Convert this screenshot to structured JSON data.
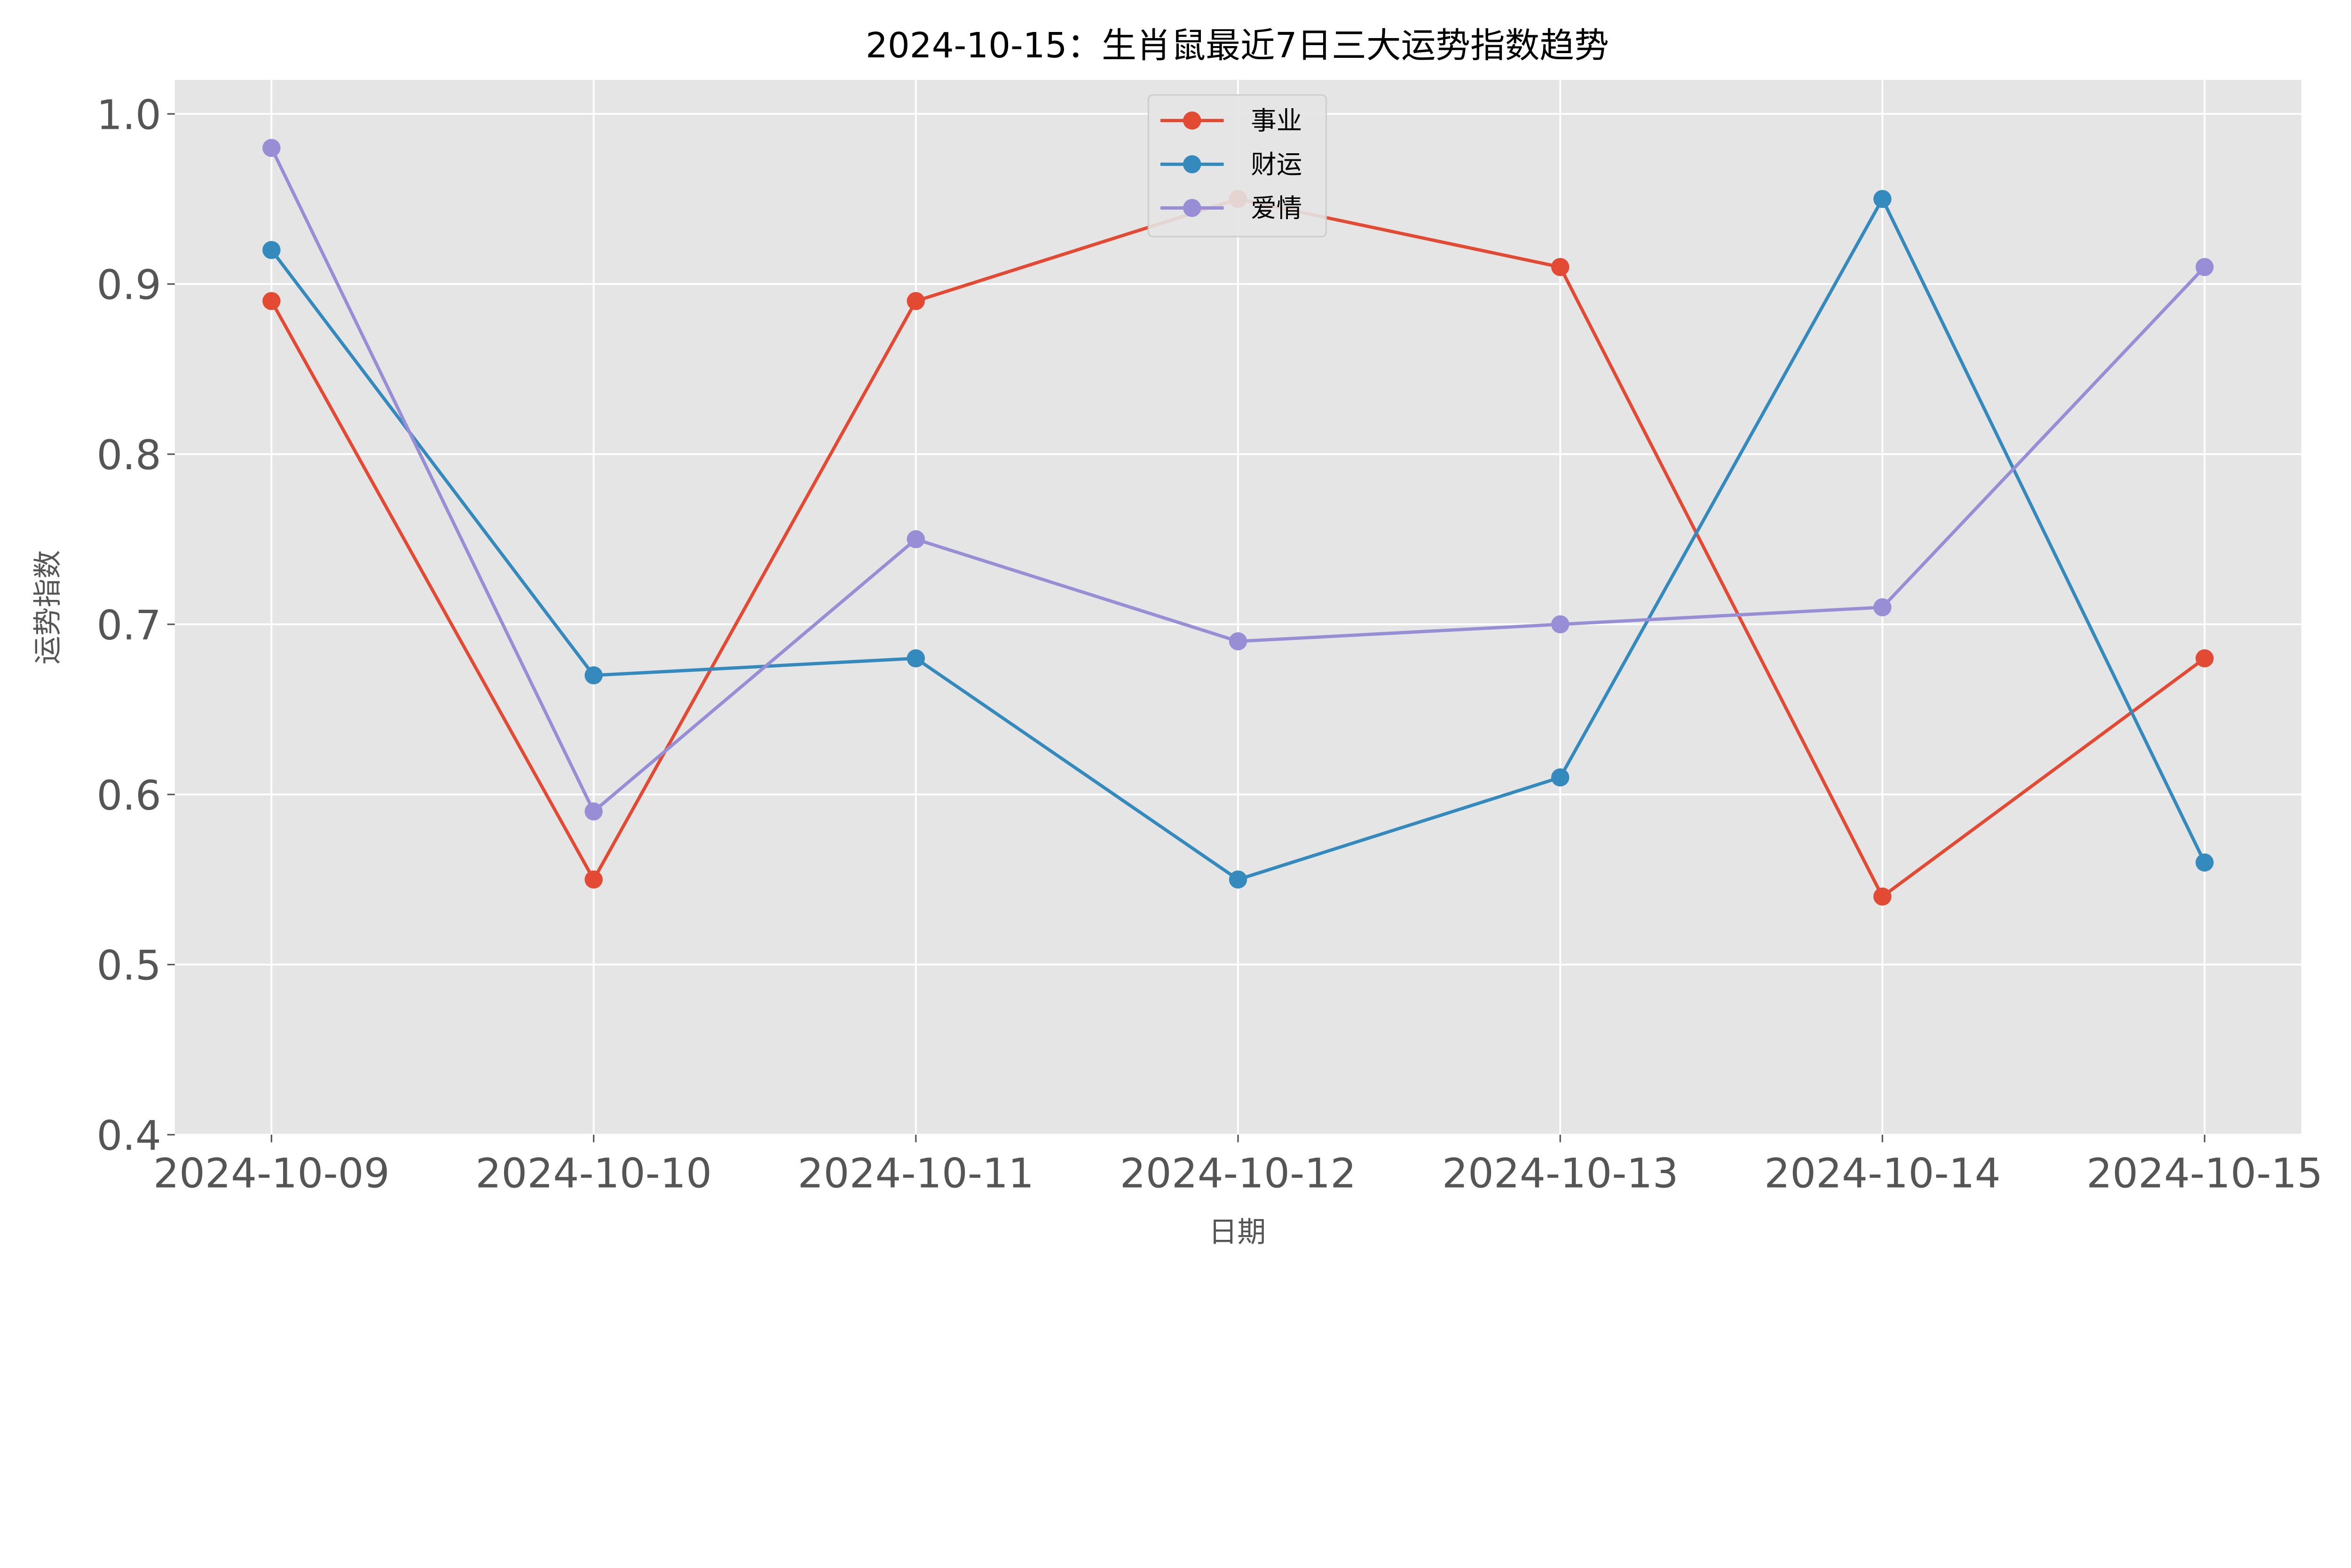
{
  "chart_data": {
    "type": "line",
    "title": "2024-10-15：生肖鼠最近7日三大运势指数趋势",
    "xlabel": "日期",
    "ylabel": "运势指数",
    "categories": [
      "2024-10-09",
      "2024-10-10",
      "2024-10-11",
      "2024-10-12",
      "2024-10-13",
      "2024-10-14",
      "2024-10-15"
    ],
    "ylim": [
      0.4,
      1.02
    ],
    "yticks": [
      "0.4",
      "0.5",
      "0.6",
      "0.7",
      "0.8",
      "0.9",
      "1.0"
    ],
    "grid": true,
    "legend_position": "top-center",
    "series": [
      {
        "name": "事业",
        "color": "#E24A33",
        "values": [
          0.89,
          0.55,
          0.89,
          0.95,
          0.91,
          0.54,
          0.68
        ]
      },
      {
        "name": "财运",
        "color": "#348ABD",
        "values": [
          0.92,
          0.67,
          0.68,
          0.55,
          0.61,
          0.95,
          0.56
        ]
      },
      {
        "name": "爱情",
        "color": "#988ED5",
        "values": [
          0.98,
          0.59,
          0.75,
          0.69,
          0.7,
          0.71,
          0.91
        ]
      }
    ]
  }
}
